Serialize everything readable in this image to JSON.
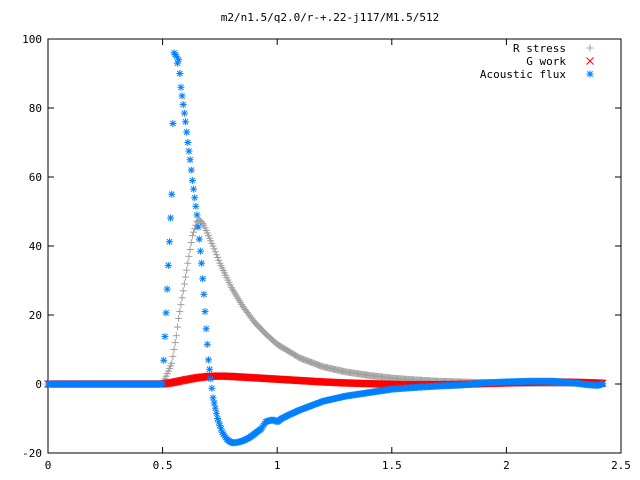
{
  "chart_data": {
    "type": "scatter",
    "title": "m2/n1.5/q2.0/r-+.22-j117/M1.5/512",
    "xlabel": "",
    "ylabel": "",
    "xlim": [
      0,
      2.5
    ],
    "ylim": [
      -20,
      100
    ],
    "xticks": [
      0,
      0.5,
      1,
      1.5,
      2,
      2.5
    ],
    "xtick_labels": [
      "0",
      "0.5",
      "1",
      "1.5",
      "2",
      "2.5"
    ],
    "yticks": [
      -20,
      0,
      20,
      40,
      60,
      80,
      100
    ],
    "ytick_labels": [
      "-20",
      "0",
      "20",
      "40",
      "60",
      "80",
      "100"
    ],
    "grid": false,
    "legend_position": "top-right",
    "series": [
      {
        "name": "R stress",
        "marker": "plus",
        "color": "#a0a0a0",
        "x": [
          0.0,
          0.1,
          0.2,
          0.3,
          0.4,
          0.5,
          0.54,
          0.55,
          0.56,
          0.57,
          0.58,
          0.59,
          0.6,
          0.61,
          0.62,
          0.63,
          0.64,
          0.65,
          0.66,
          0.67,
          0.68,
          0.7,
          0.72,
          0.75,
          0.8,
          0.85,
          0.9,
          0.95,
          1.0,
          1.1,
          1.2,
          1.3,
          1.4,
          1.5,
          1.6,
          1.7,
          1.8,
          1.9,
          2.0,
          2.1,
          2.2,
          2.3,
          2.4,
          2.42
        ],
        "y": [
          0,
          0,
          0,
          0,
          0,
          0,
          6,
          10,
          14,
          19,
          23,
          27,
          31,
          35,
          39,
          43,
          45,
          47,
          47.5,
          47,
          46,
          43,
          40,
          35,
          28,
          22.5,
          18,
          14.5,
          11.5,
          7.5,
          5,
          3.5,
          2.5,
          1.7,
          1.2,
          0.8,
          0.6,
          0.4,
          0.3,
          0.2,
          0.2,
          0.2,
          0.2,
          0.2
        ]
      },
      {
        "name": "G work",
        "marker": "cross",
        "color": "#ff0000",
        "x": [
          0.0,
          0.1,
          0.2,
          0.3,
          0.4,
          0.5,
          0.55,
          0.6,
          0.65,
          0.7,
          0.75,
          0.8,
          0.85,
          0.9,
          0.95,
          1.0,
          1.1,
          1.2,
          1.3,
          1.4,
          1.5,
          1.6,
          1.7,
          1.8,
          1.9,
          2.0,
          2.1,
          2.2,
          2.3,
          2.4,
          2.42
        ],
        "y": [
          0,
          0,
          0,
          0,
          0,
          0,
          0.5,
          1.2,
          1.8,
          2.2,
          2.3,
          2.2,
          2.0,
          1.8,
          1.6,
          1.4,
          1.0,
          0.6,
          0.3,
          0.1,
          -0.1,
          -0.2,
          -0.2,
          -0.1,
          0.1,
          0.3,
          0.5,
          0.6,
          0.5,
          0.3,
          0.2
        ]
      },
      {
        "name": "Acoustic flux",
        "marker": "star",
        "color": "#0080ff",
        "x": [
          0.0,
          0.1,
          0.2,
          0.3,
          0.4,
          0.5,
          0.54,
          0.55,
          0.56,
          0.565,
          0.57,
          0.575,
          0.58,
          0.59,
          0.6,
          0.61,
          0.62,
          0.63,
          0.64,
          0.65,
          0.66,
          0.67,
          0.68,
          0.69,
          0.7,
          0.72,
          0.74,
          0.76,
          0.78,
          0.8,
          0.82,
          0.85,
          0.88,
          0.9,
          0.93,
          0.95,
          0.97,
          0.99,
          1.0,
          1.02,
          1.05,
          1.1,
          1.2,
          1.3,
          1.4,
          1.5,
          1.6,
          1.7,
          1.8,
          1.9,
          2.0,
          2.1,
          2.2,
          2.3,
          2.35,
          2.4,
          2.42
        ],
        "y": [
          0,
          0,
          0,
          0,
          0,
          0,
          55,
          96,
          95,
          93,
          94,
          90,
          86,
          81,
          76,
          70,
          65,
          59,
          54,
          49,
          42,
          35,
          26,
          16,
          7,
          -4,
          -10,
          -14,
          -16,
          -17,
          -17,
          -16.5,
          -15.5,
          -14.5,
          -13,
          -11,
          -10.5,
          -10.5,
          -11,
          -10,
          -9,
          -7.5,
          -5,
          -3.5,
          -2.5,
          -1.5,
          -1,
          -0.6,
          -0.3,
          0.3,
          0.6,
          0.8,
          0.8,
          0.3,
          -0.2,
          -0.4,
          0
        ]
      }
    ]
  }
}
